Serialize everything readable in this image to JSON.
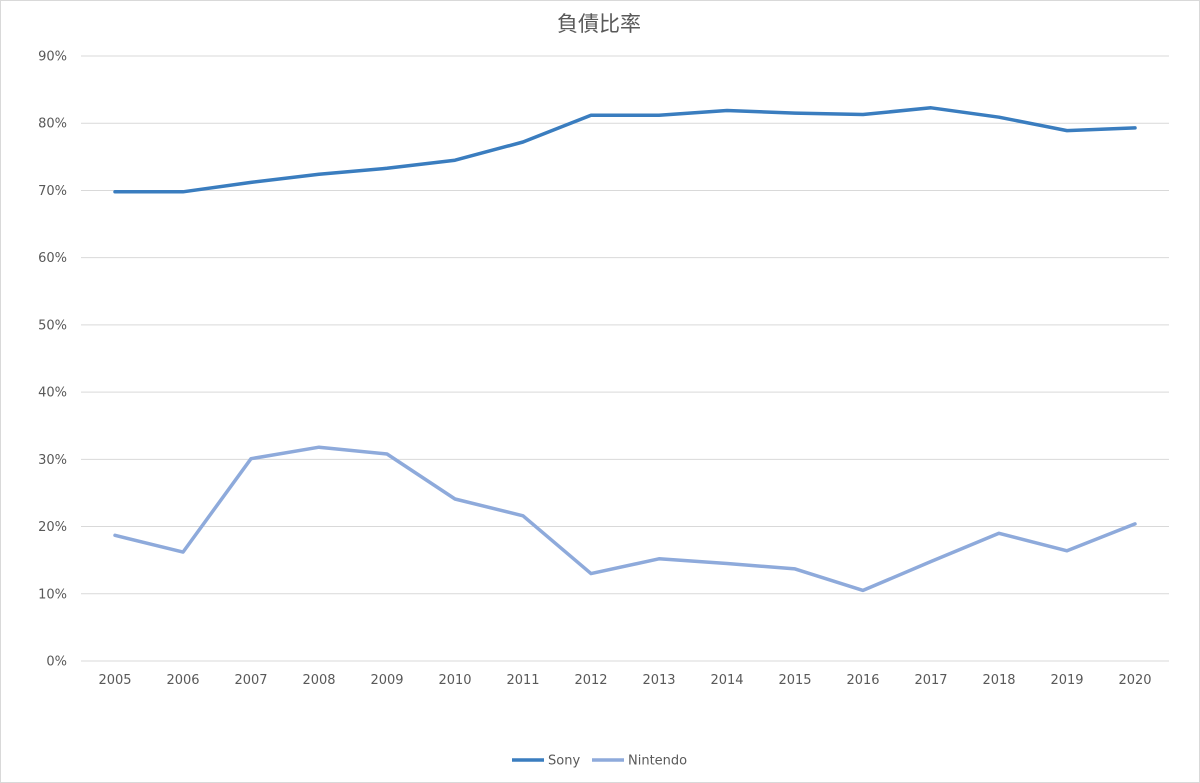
{
  "chart_data": {
    "type": "line",
    "title": "負債比率",
    "xlabel": "",
    "ylabel": "",
    "categories": [
      "2005",
      "2006",
      "2007",
      "2008",
      "2009",
      "2010",
      "2011",
      "2012",
      "2013",
      "2014",
      "2015",
      "2016",
      "2017",
      "2018",
      "2019",
      "2020"
    ],
    "ylim": [
      0,
      0.9
    ],
    "yticks": [
      0,
      0.1,
      0.2,
      0.3,
      0.4,
      0.5,
      0.6,
      0.7,
      0.8,
      0.9
    ],
    "ytick_labels": [
      "0%",
      "10%",
      "20%",
      "30%",
      "40%",
      "50%",
      "60%",
      "70%",
      "80%",
      "90%"
    ],
    "grid": true,
    "legend_position": "bottom",
    "series": [
      {
        "name": "Sony",
        "color": "#3a7dbf",
        "values": [
          0.698,
          0.698,
          0.712,
          0.724,
          0.733,
          0.745,
          0.772,
          0.812,
          0.812,
          0.819,
          0.815,
          0.813,
          0.823,
          0.809,
          0.789,
          0.793
        ]
      },
      {
        "name": "Nintendo",
        "color": "#8eaadb",
        "values": [
          0.187,
          0.162,
          0.301,
          0.318,
          0.308,
          0.241,
          0.216,
          0.13,
          0.152,
          0.145,
          0.137,
          0.105,
          0.148,
          0.19,
          0.164,
          0.204
        ]
      }
    ]
  }
}
